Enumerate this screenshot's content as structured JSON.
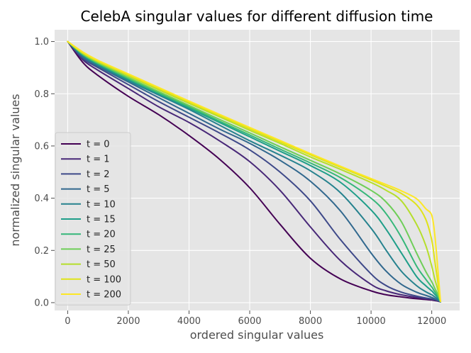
{
  "chart_data": {
    "type": "line",
    "title": "CelebA singular values for different diffusion time",
    "xlabel": "ordered singular values",
    "ylabel": "normalized singular values",
    "xlim": [
      -430,
      12920
    ],
    "ylim": [
      -0.03,
      1.045
    ],
    "xticks": [
      0,
      2000,
      4000,
      6000,
      8000,
      10000,
      12000
    ],
    "xtick_labels": [
      "0",
      "2000",
      "4000",
      "6000",
      "8000",
      "10000",
      "12000"
    ],
    "yticks": [
      0.0,
      0.2,
      0.4,
      0.6,
      0.8,
      1.0
    ],
    "ytick_labels": [
      "0.0",
      "0.2",
      "0.4",
      "0.6",
      "0.8",
      "1.0"
    ],
    "grid": true,
    "legend_position": "center-left",
    "x": [
      0,
      500,
      1000,
      2000,
      3000,
      4000,
      5000,
      6000,
      7000,
      8000,
      9000,
      10000,
      10500,
      11000,
      11500,
      11800,
      12000,
      12100,
      12200,
      12288
    ],
    "series": [
      {
        "name": "t = 0",
        "color": "#440154",
        "values": [
          1.0,
          0.92,
          0.87,
          0.79,
          0.72,
          0.64,
          0.55,
          0.44,
          0.3,
          0.17,
          0.09,
          0.045,
          0.03,
          0.022,
          0.015,
          0.012,
          0.01,
          0.008,
          0.006,
          0.003
        ]
      },
      {
        "name": "t = 1",
        "color": "#482878",
        "values": [
          1.0,
          0.93,
          0.89,
          0.82,
          0.75,
          0.69,
          0.62,
          0.54,
          0.43,
          0.29,
          0.16,
          0.07,
          0.045,
          0.03,
          0.02,
          0.015,
          0.012,
          0.01,
          0.007,
          0.003
        ]
      },
      {
        "name": "t = 2",
        "color": "#3e4989",
        "values": [
          1.0,
          0.935,
          0.9,
          0.835,
          0.77,
          0.71,
          0.65,
          0.585,
          0.5,
          0.39,
          0.24,
          0.11,
          0.065,
          0.04,
          0.025,
          0.018,
          0.014,
          0.011,
          0.008,
          0.003
        ]
      },
      {
        "name": "t = 5",
        "color": "#31688e",
        "values": [
          1.0,
          0.94,
          0.905,
          0.845,
          0.785,
          0.725,
          0.665,
          0.61,
          0.545,
          0.465,
          0.35,
          0.19,
          0.12,
          0.07,
          0.04,
          0.028,
          0.02,
          0.015,
          0.01,
          0.003
        ]
      },
      {
        "name": "t = 10",
        "color": "#26828e",
        "values": [
          1.0,
          0.945,
          0.91,
          0.85,
          0.795,
          0.74,
          0.68,
          0.62,
          0.565,
          0.505,
          0.42,
          0.285,
          0.2,
          0.12,
          0.065,
          0.042,
          0.03,
          0.022,
          0.014,
          0.004
        ]
      },
      {
        "name": "t = 15",
        "color": "#1f9e89",
        "values": [
          1.0,
          0.948,
          0.913,
          0.855,
          0.8,
          0.745,
          0.69,
          0.635,
          0.58,
          0.525,
          0.46,
          0.355,
          0.28,
          0.19,
          0.1,
          0.065,
          0.045,
          0.032,
          0.02,
          0.004
        ]
      },
      {
        "name": "t = 20",
        "color": "#35b779",
        "values": [
          1.0,
          0.95,
          0.916,
          0.858,
          0.803,
          0.75,
          0.695,
          0.642,
          0.588,
          0.535,
          0.478,
          0.4,
          0.34,
          0.25,
          0.14,
          0.09,
          0.06,
          0.042,
          0.025,
          0.004
        ]
      },
      {
        "name": "t = 25",
        "color": "#6ece58",
        "values": [
          1.0,
          0.952,
          0.918,
          0.862,
          0.808,
          0.755,
          0.702,
          0.65,
          0.597,
          0.545,
          0.492,
          0.43,
          0.385,
          0.31,
          0.19,
          0.12,
          0.08,
          0.055,
          0.032,
          0.004
        ]
      },
      {
        "name": "t = 50",
        "color": "#b5de2b",
        "values": [
          1.0,
          0.955,
          0.922,
          0.868,
          0.815,
          0.763,
          0.712,
          0.66,
          0.61,
          0.558,
          0.51,
          0.46,
          0.43,
          0.39,
          0.3,
          0.22,
          0.14,
          0.09,
          0.05,
          0.005
        ]
      },
      {
        "name": "t = 100",
        "color": "#dfe318",
        "values": [
          1.0,
          0.957,
          0.925,
          0.872,
          0.82,
          0.768,
          0.717,
          0.666,
          0.616,
          0.566,
          0.518,
          0.47,
          0.445,
          0.418,
          0.375,
          0.32,
          0.24,
          0.16,
          0.08,
          0.005
        ]
      },
      {
        "name": "t = 200",
        "color": "#fde725",
        "values": [
          1.0,
          0.96,
          0.928,
          0.876,
          0.824,
          0.772,
          0.721,
          0.671,
          0.621,
          0.571,
          0.522,
          0.475,
          0.452,
          0.428,
          0.398,
          0.36,
          0.335,
          0.26,
          0.13,
          0.005
        ]
      }
    ]
  }
}
